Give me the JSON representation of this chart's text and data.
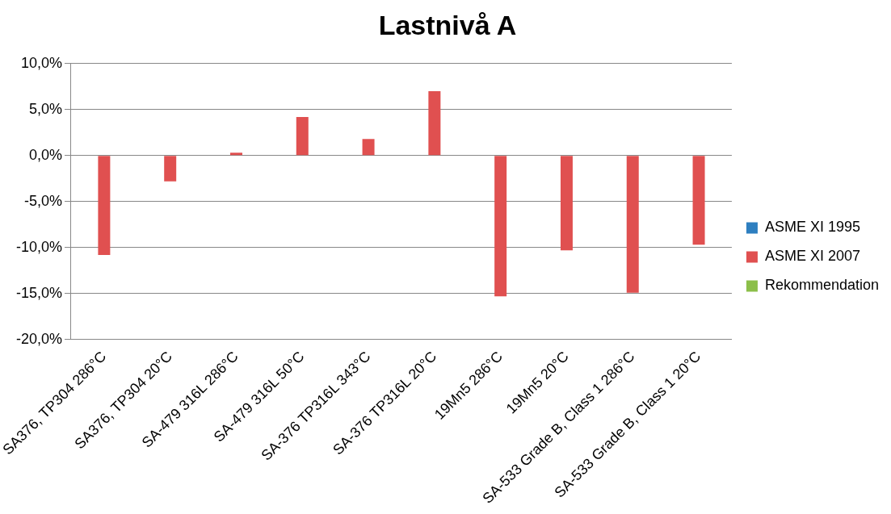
{
  "chart_data": {
    "type": "bar",
    "title": "Lastnivå A",
    "categories": [
      "SA376, TP304 286°C",
      "SA376, TP304 20°C",
      "SA-479 316L 286°C",
      "SA-479 316L 50°C",
      "SA-376 TP316L 343°C",
      "SA-376 TP316L 20°C",
      "19Mn5 286°C",
      "19Mn5 20°C",
      "SA-533 Grade B, Class 1 286°C",
      "SA-533 Grade B, Class 1 20°C"
    ],
    "series": [
      {
        "name": "ASME XI 1995",
        "color": "#2e7fc0",
        "values": [
          null,
          null,
          null,
          null,
          null,
          null,
          null,
          null,
          null,
          null
        ]
      },
      {
        "name": "ASME XI 2007",
        "color": "#e05050",
        "values": [
          -10.8,
          -2.8,
          0.3,
          4.2,
          1.8,
          7.0,
          -15.3,
          -10.3,
          -14.9,
          -9.7
        ]
      },
      {
        "name": "Rekommendation",
        "color": "#8cbf4a",
        "values": [
          null,
          null,
          null,
          null,
          null,
          null,
          null,
          null,
          null,
          null
        ]
      }
    ],
    "ylim": [
      -20,
      10
    ],
    "yticks": [
      {
        "value": -20,
        "label": "-20,0%"
      },
      {
        "value": -15,
        "label": "-15,0%"
      },
      {
        "value": -10,
        "label": "-10,0%"
      },
      {
        "value": -5,
        "label": "-5,0%"
      },
      {
        "value": 0,
        "label": "0,0%"
      },
      {
        "value": 5,
        "label": "5,0%"
      },
      {
        "value": 10,
        "label": "10,0%"
      }
    ],
    "grid": "y",
    "legend": "right"
  }
}
